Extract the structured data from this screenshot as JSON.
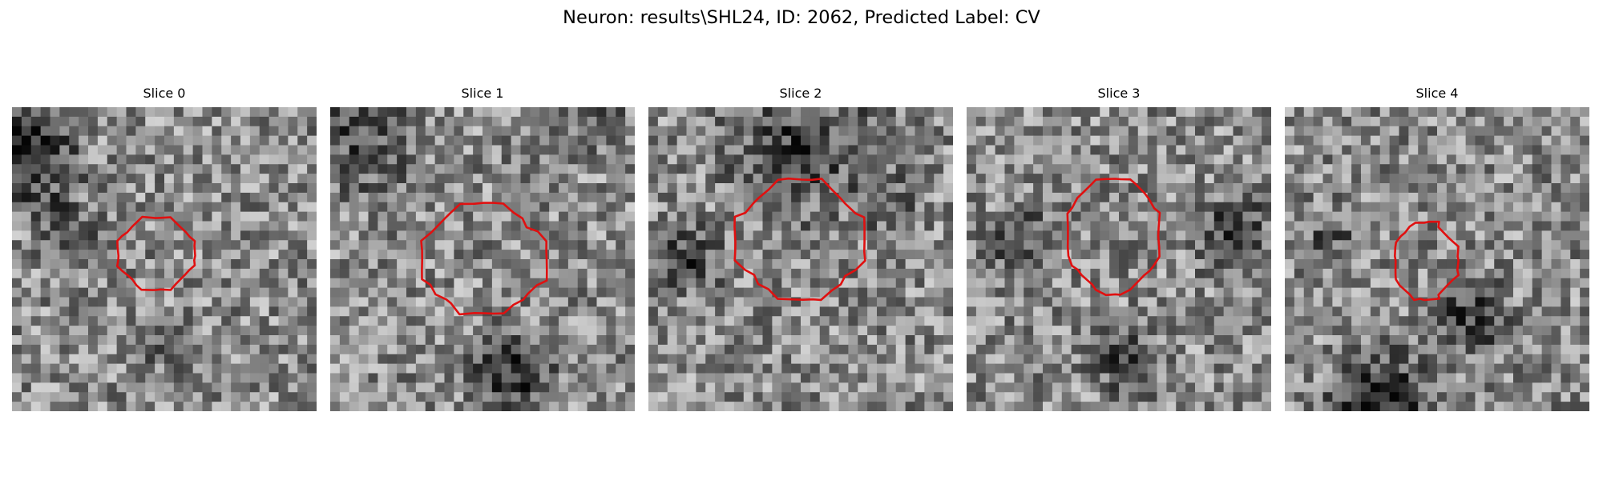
{
  "figure": {
    "title": "Neuron: results\\SHL24, ID: 2062, Predicted Label: CV"
  },
  "contour_color": "#e01010",
  "slices": [
    {
      "title": "Slice 0"
    },
    {
      "title": "Slice 1"
    },
    {
      "title": "Slice 2"
    },
    {
      "title": "Slice 3"
    },
    {
      "title": "Slice 4"
    }
  ]
}
